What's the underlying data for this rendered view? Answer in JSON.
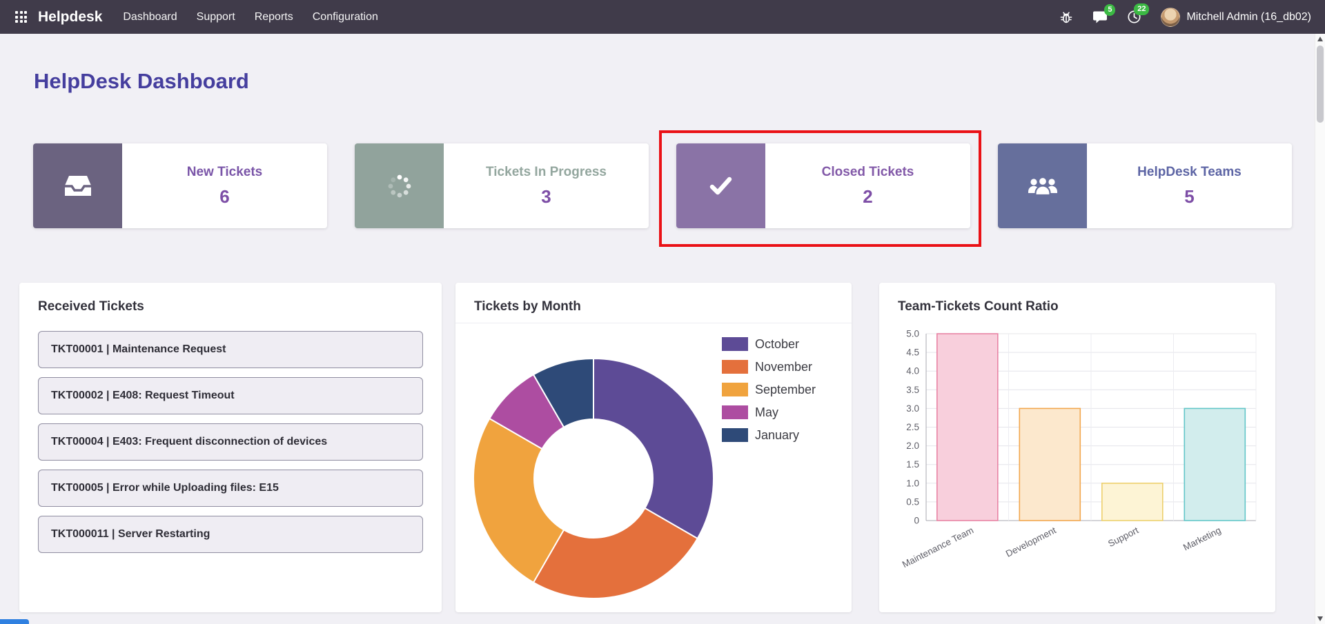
{
  "navbar": {
    "brand": "Helpdesk",
    "menu": [
      "Dashboard",
      "Support",
      "Reports",
      "Configuration"
    ],
    "badges": {
      "messages": "5",
      "activities": "22"
    },
    "user": "Mitchell Admin (16_db02)",
    "icons": [
      "apps-menu-icon",
      "bug-icon",
      "messages-icon",
      "activities-icon",
      "avatar"
    ]
  },
  "page": {
    "title": "HelpDesk Dashboard"
  },
  "theme": {
    "navbar_bg": "#403b4a",
    "page_bg": "#f1f0f5",
    "heading_color": "#453e9e",
    "kpi_value_color": "#7d4ea6",
    "badge_bg": "#3cb944"
  },
  "kpis": [
    {
      "label": "New Tickets",
      "value": "6",
      "icon": "inbox-icon",
      "tile_color": "#6b6380",
      "title_color": "#7a55a8"
    },
    {
      "label": "Tickets In Progress",
      "value": "3",
      "icon": "spinner-icon",
      "tile_color": "#91a39c",
      "title_color": "#93a69e"
    },
    {
      "label": "Closed Tickets",
      "value": "2",
      "icon": "check-icon",
      "tile_color": "#8a73a6",
      "title_color": "#8259a8",
      "highlighted": true
    },
    {
      "label": "HelpDesk Teams",
      "value": "5",
      "icon": "users-icon",
      "tile_color": "#666f9c",
      "title_color": "#5c64a4"
    }
  ],
  "annotation": {
    "type": "highlight-box",
    "target": "Closed Tickets",
    "color": "#ea1116"
  },
  "panels": {
    "received": {
      "title": "Received Tickets",
      "tickets": [
        "TKT00001 | Maintenance Request",
        "TKT00002 | E408: Request Timeout",
        "TKT00004 | E403: Frequent disconnection of devices",
        "TKT00005 | Error while Uploading files: E15",
        "TKT000011 | Server Restarting"
      ]
    },
    "by_month": {
      "title": "Tickets by Month"
    },
    "team_ratio": {
      "title": "Team-Tickets Count Ratio"
    }
  },
  "chart_data": [
    {
      "type": "pie",
      "variant": "donut",
      "title": "Tickets by Month",
      "labels": [
        "October",
        "November",
        "September",
        "May",
        "January"
      ],
      "values": [
        4,
        3,
        3,
        1,
        1
      ],
      "colors": [
        "#5d4b96",
        "#e4703c",
        "#f0a33e",
        "#ad4da1",
        "#2e4a78"
      ],
      "legend_position": "right"
    },
    {
      "type": "bar",
      "title": "Team-Tickets Count Ratio",
      "categories": [
        "Maintenance Team",
        "Development",
        "Support",
        "Marketing"
      ],
      "values": [
        5,
        3,
        1,
        3
      ],
      "fill_colors": [
        "#f8cfdc",
        "#fce8cd",
        "#fdf4d5",
        "#d2eded"
      ],
      "border_colors": [
        "#e883a4",
        "#f2a74e",
        "#edd06d",
        "#62c6c8"
      ],
      "xlabel": "",
      "ylabel": "",
      "ylim": [
        0,
        5
      ],
      "ytick_step": 0.5,
      "grid": true,
      "x_label_rotation": -27
    }
  ]
}
